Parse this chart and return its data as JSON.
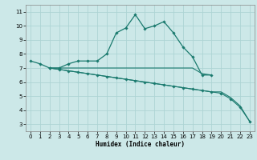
{
  "xlabel": "Humidex (Indice chaleur)",
  "bg_color": "#cce8e8",
  "grid_color": "#add4d4",
  "line_color": "#1a7a6e",
  "x_ticks": [
    0,
    1,
    2,
    3,
    4,
    5,
    6,
    7,
    8,
    9,
    10,
    11,
    12,
    13,
    14,
    15,
    16,
    17,
    18,
    19,
    20,
    21,
    22,
    23
  ],
  "y_ticks": [
    3,
    4,
    5,
    6,
    7,
    8,
    9,
    10,
    11
  ],
  "ylim": [
    2.5,
    11.5
  ],
  "xlim": [
    -0.5,
    23.5
  ],
  "curve1_x": [
    0,
    1,
    2,
    3,
    4,
    5,
    6,
    7,
    8,
    9,
    10,
    11,
    12,
    13,
    14,
    15,
    16,
    17,
    18,
    19
  ],
  "curve1_y": [
    7.5,
    7.3,
    7.0,
    7.0,
    7.3,
    7.5,
    7.5,
    7.5,
    8.0,
    9.5,
    9.85,
    10.8,
    9.8,
    10.0,
    10.3,
    9.5,
    8.5,
    7.8,
    6.5,
    6.5
  ],
  "curve2_x": [
    2,
    3,
    4,
    5,
    6,
    7,
    8,
    9,
    10,
    11,
    12,
    13,
    14,
    15,
    16,
    17,
    18,
    19
  ],
  "curve2_y": [
    7.0,
    7.0,
    7.0,
    7.0,
    7.0,
    7.0,
    7.0,
    7.0,
    7.0,
    7.0,
    7.0,
    7.0,
    7.0,
    7.0,
    7.0,
    7.0,
    6.6,
    6.5
  ],
  "curve3_x": [
    2,
    3,
    4,
    5,
    6,
    7,
    8,
    9,
    10,
    11,
    12,
    13,
    14,
    15,
    16,
    17,
    18,
    19,
    20,
    21,
    22,
    23
  ],
  "curve3_y": [
    7.0,
    6.9,
    6.8,
    6.7,
    6.6,
    6.5,
    6.4,
    6.3,
    6.2,
    6.1,
    6.0,
    5.9,
    5.8,
    5.7,
    5.6,
    5.5,
    5.4,
    5.3,
    5.2,
    4.8,
    4.2,
    3.2
  ],
  "curve4_x": [
    2,
    3,
    4,
    5,
    6,
    7,
    8,
    9,
    10,
    11,
    12,
    13,
    14,
    15,
    16,
    17,
    18,
    19,
    20,
    21,
    22,
    23
  ],
  "curve4_y": [
    7.0,
    6.9,
    6.8,
    6.7,
    6.6,
    6.5,
    6.4,
    6.3,
    6.2,
    6.1,
    6.0,
    5.9,
    5.8,
    5.7,
    5.6,
    5.5,
    5.4,
    5.3,
    5.3,
    4.9,
    4.3,
    3.2
  ]
}
